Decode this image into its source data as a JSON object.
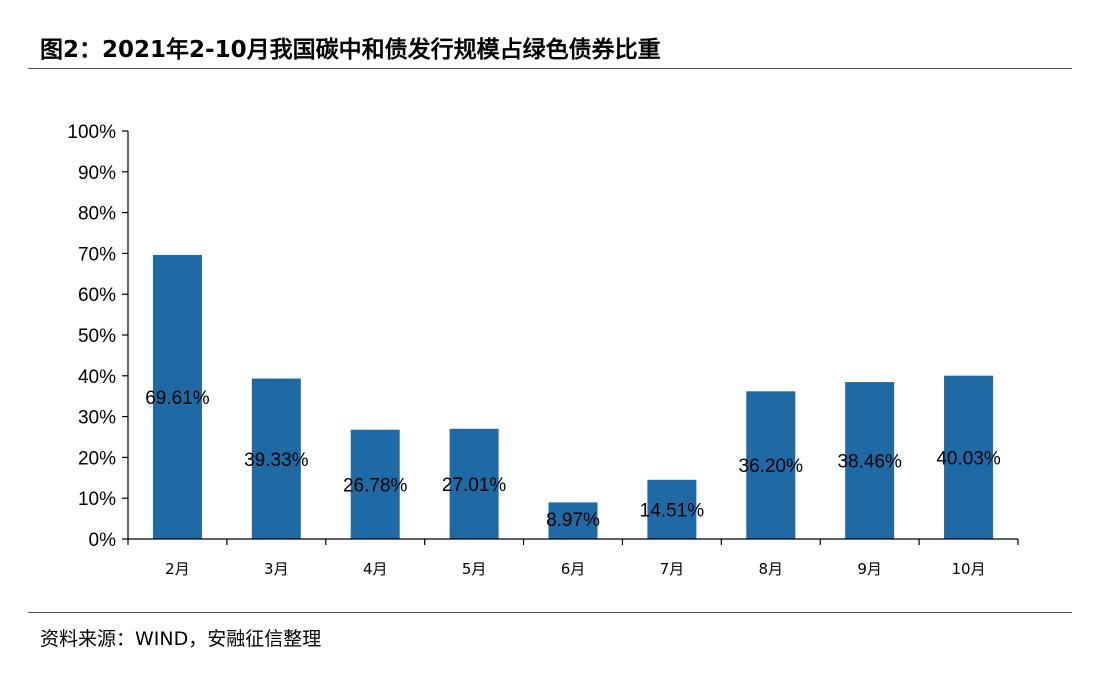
{
  "title": "图2：2021年2-10月我国碳中和债发行规模占绿色债券比重",
  "source": "资料来源：WIND，安融征信整理",
  "colors": {
    "bar": "#1F6AA5",
    "axis": "#000000"
  },
  "chart_data": {
    "type": "bar",
    "categories": [
      "2月",
      "3月",
      "4月",
      "5月",
      "6月",
      "7月",
      "8月",
      "9月",
      "10月"
    ],
    "values": [
      69.61,
      39.33,
      26.78,
      27.01,
      8.97,
      14.51,
      36.2,
      38.46,
      40.03
    ],
    "data_labels": [
      "69.61%",
      "39.33%",
      "26.78%",
      "27.01%",
      "8.97%",
      "14.51%",
      "36.20%",
      "38.46%",
      "40.03%"
    ],
    "ylim": [
      0,
      100
    ],
    "yticks": [
      0,
      10,
      20,
      30,
      40,
      50,
      60,
      70,
      80,
      90,
      100
    ],
    "ytick_labels": [
      "0%",
      "10%",
      "20%",
      "30%",
      "40%",
      "50%",
      "60%",
      "70%",
      "80%",
      "90%",
      "100%"
    ],
    "xlabel": "",
    "ylabel": "",
    "grid": false,
    "legend": "none"
  }
}
